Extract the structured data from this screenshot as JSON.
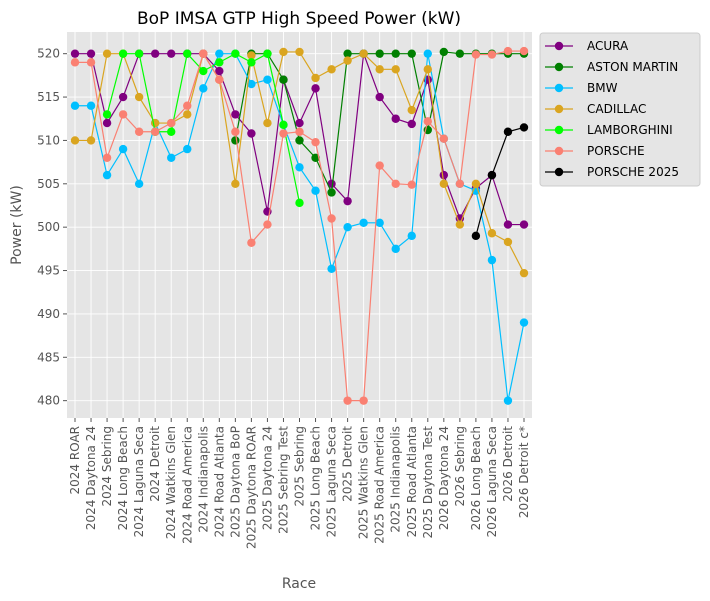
{
  "chart_data": {
    "type": "line",
    "title": "BoP IMSA GTP High Speed Power (kW)",
    "xlabel": "Race",
    "ylabel": "Power (kW)",
    "ylim": [
      478,
      522.5
    ],
    "yticks": [
      480,
      485,
      490,
      495,
      500,
      505,
      510,
      515,
      520
    ],
    "grid": true,
    "legend_position": "outside-right",
    "categories": [
      "2024 ROAR",
      "2024 Daytona 24",
      "2024 Sebring",
      "2024 Long Beach",
      "2024 Laguna Seca",
      "2024 Detroit",
      "2024 Watkins Glen",
      "2024 Road America",
      "2024 Indianapolis",
      "2024 Road Atlanta",
      "2025 Daytona BoP",
      "2025 Daytona ROAR",
      "2025 Daytona 24",
      "2025 Sebring Test",
      "2025 Sebring",
      "2025 Long Beach",
      "2025 Laguna Seca",
      "2025 Detroit",
      "2025 Watkins Glen",
      "2025 Road America",
      "2025 Indianapolis",
      "2025 Road Atlanta",
      "2025 Daytona Test",
      "2026 Daytona 24",
      "2026 Sebring",
      "2026 Long Beach",
      "2026 Laguna Seca",
      "2026 Detroit",
      "2026 Detroit c*"
    ],
    "series": [
      {
        "name": "ACURA",
        "color": "#800080",
        "points": [
          [
            0,
            520
          ],
          [
            1,
            520
          ],
          [
            2,
            512
          ],
          [
            3,
            515
          ],
          [
            4,
            520
          ],
          [
            5,
            520
          ],
          [
            6,
            520
          ],
          [
            7,
            520
          ],
          [
            8,
            520
          ],
          [
            9,
            518
          ],
          [
            10,
            513
          ],
          [
            11,
            510.8
          ],
          [
            12,
            501.8
          ],
          [
            13,
            517
          ],
          [
            14,
            512
          ],
          [
            15,
            516
          ],
          [
            16,
            505
          ],
          [
            17,
            503
          ],
          [
            18,
            520
          ],
          [
            19,
            515
          ],
          [
            20,
            512.5
          ],
          [
            21,
            511.9
          ],
          [
            22,
            517
          ],
          [
            23,
            506
          ],
          [
            24,
            501
          ],
          [
            25,
            504.5
          ],
          [
            26,
            506
          ],
          [
            27,
            500.3
          ],
          [
            28,
            500.3
          ]
        ]
      },
      {
        "name": "ASTON MARTIN",
        "color": "#008000",
        "points": [
          [
            10,
            510
          ],
          [
            11,
            520
          ],
          [
            12,
            520
          ],
          [
            13,
            517
          ],
          [
            14,
            510
          ],
          [
            15,
            508
          ],
          [
            16,
            504
          ],
          [
            17,
            520
          ],
          [
            18,
            520
          ],
          [
            19,
            520
          ],
          [
            20,
            520
          ],
          [
            21,
            520
          ],
          [
            22,
            511.2
          ],
          [
            23,
            520.2
          ],
          [
            24,
            520
          ],
          [
            25,
            520
          ],
          [
            26,
            520
          ],
          [
            27,
            520
          ],
          [
            28,
            520
          ]
        ]
      },
      {
        "name": "BMW",
        "color": "#00bfff",
        "points": [
          [
            0,
            514
          ],
          [
            1,
            514
          ],
          [
            2,
            506
          ],
          [
            3,
            509
          ],
          [
            4,
            505
          ],
          [
            5,
            512
          ],
          [
            6,
            508
          ],
          [
            7,
            509
          ],
          [
            8,
            516
          ],
          [
            9,
            520
          ],
          [
            10,
            520
          ],
          [
            11,
            516.5
          ],
          [
            12,
            517
          ],
          [
            13,
            511.8
          ],
          [
            14,
            506.9
          ],
          [
            15,
            504.2
          ],
          [
            16,
            495.2
          ],
          [
            17,
            500
          ],
          [
            18,
            500.5
          ],
          [
            19,
            500.5
          ],
          [
            20,
            497.5
          ],
          [
            21,
            499
          ],
          [
            22,
            520
          ],
          [
            23,
            510.2
          ],
          [
            24,
            505
          ],
          [
            25,
            504.2
          ],
          [
            26,
            496.2
          ],
          [
            27,
            480
          ],
          [
            28,
            489
          ]
        ]
      },
      {
        "name": "CADILLAC",
        "color": "#daa520",
        "points": [
          [
            0,
            510
          ],
          [
            1,
            510
          ],
          [
            2,
            520
          ],
          [
            3,
            520
          ],
          [
            4,
            515
          ],
          [
            5,
            512
          ],
          [
            6,
            512
          ],
          [
            7,
            513
          ],
          [
            8,
            520
          ],
          [
            9,
            517
          ],
          [
            10,
            505
          ],
          [
            11,
            519.8
          ],
          [
            12,
            512
          ],
          [
            13,
            520.2
          ],
          [
            14,
            520.2
          ],
          [
            15,
            517.2
          ],
          [
            16,
            518.2
          ],
          [
            17,
            519.2
          ],
          [
            18,
            520
          ],
          [
            19,
            518.2
          ],
          [
            20,
            518.2
          ],
          [
            21,
            513.5
          ],
          [
            22,
            518.2
          ],
          [
            23,
            505
          ],
          [
            24,
            500.3
          ],
          [
            25,
            505
          ],
          [
            26,
            499.3
          ],
          [
            27,
            498.3
          ],
          [
            28,
            494.7
          ]
        ]
      },
      {
        "name": "LAMBORGHINI",
        "color": "#00ff00",
        "points": [
          [
            2,
            513
          ],
          [
            3,
            520
          ],
          [
            4,
            520
          ],
          [
            5,
            511
          ],
          [
            6,
            511
          ],
          [
            7,
            520
          ],
          [
            8,
            518
          ],
          [
            9,
            519
          ],
          [
            10,
            520
          ],
          [
            11,
            519
          ],
          [
            12,
            520
          ],
          [
            13,
            511.8
          ],
          [
            14,
            502.8
          ]
        ]
      },
      {
        "name": "PORSCHE",
        "color": "#fa8072",
        "points": [
          [
            0,
            519
          ],
          [
            1,
            519
          ],
          [
            2,
            508
          ],
          [
            3,
            513
          ],
          [
            4,
            511
          ],
          [
            5,
            511
          ],
          [
            6,
            512
          ],
          [
            7,
            514
          ],
          [
            8,
            520
          ],
          [
            9,
            517
          ],
          [
            10,
            511
          ],
          [
            11,
            498.2
          ],
          [
            12,
            500.3
          ],
          [
            13,
            510.8
          ],
          [
            14,
            511
          ],
          [
            15,
            509.8
          ],
          [
            16,
            501
          ],
          [
            17,
            480
          ],
          [
            18,
            480
          ],
          [
            19,
            507.1
          ],
          [
            20,
            505
          ],
          [
            21,
            504.9
          ],
          [
            22,
            512.2
          ],
          [
            23,
            510.2
          ],
          [
            24,
            505
          ],
          [
            25,
            519.9
          ],
          [
            26,
            519.9
          ],
          [
            27,
            520.3
          ],
          [
            28,
            520.3
          ]
        ]
      },
      {
        "name": "PORSCHE 2025",
        "color": "#000000",
        "points": [
          [
            25,
            499
          ],
          [
            26,
            506
          ],
          [
            27,
            511
          ],
          [
            28,
            511.5
          ]
        ]
      }
    ]
  }
}
